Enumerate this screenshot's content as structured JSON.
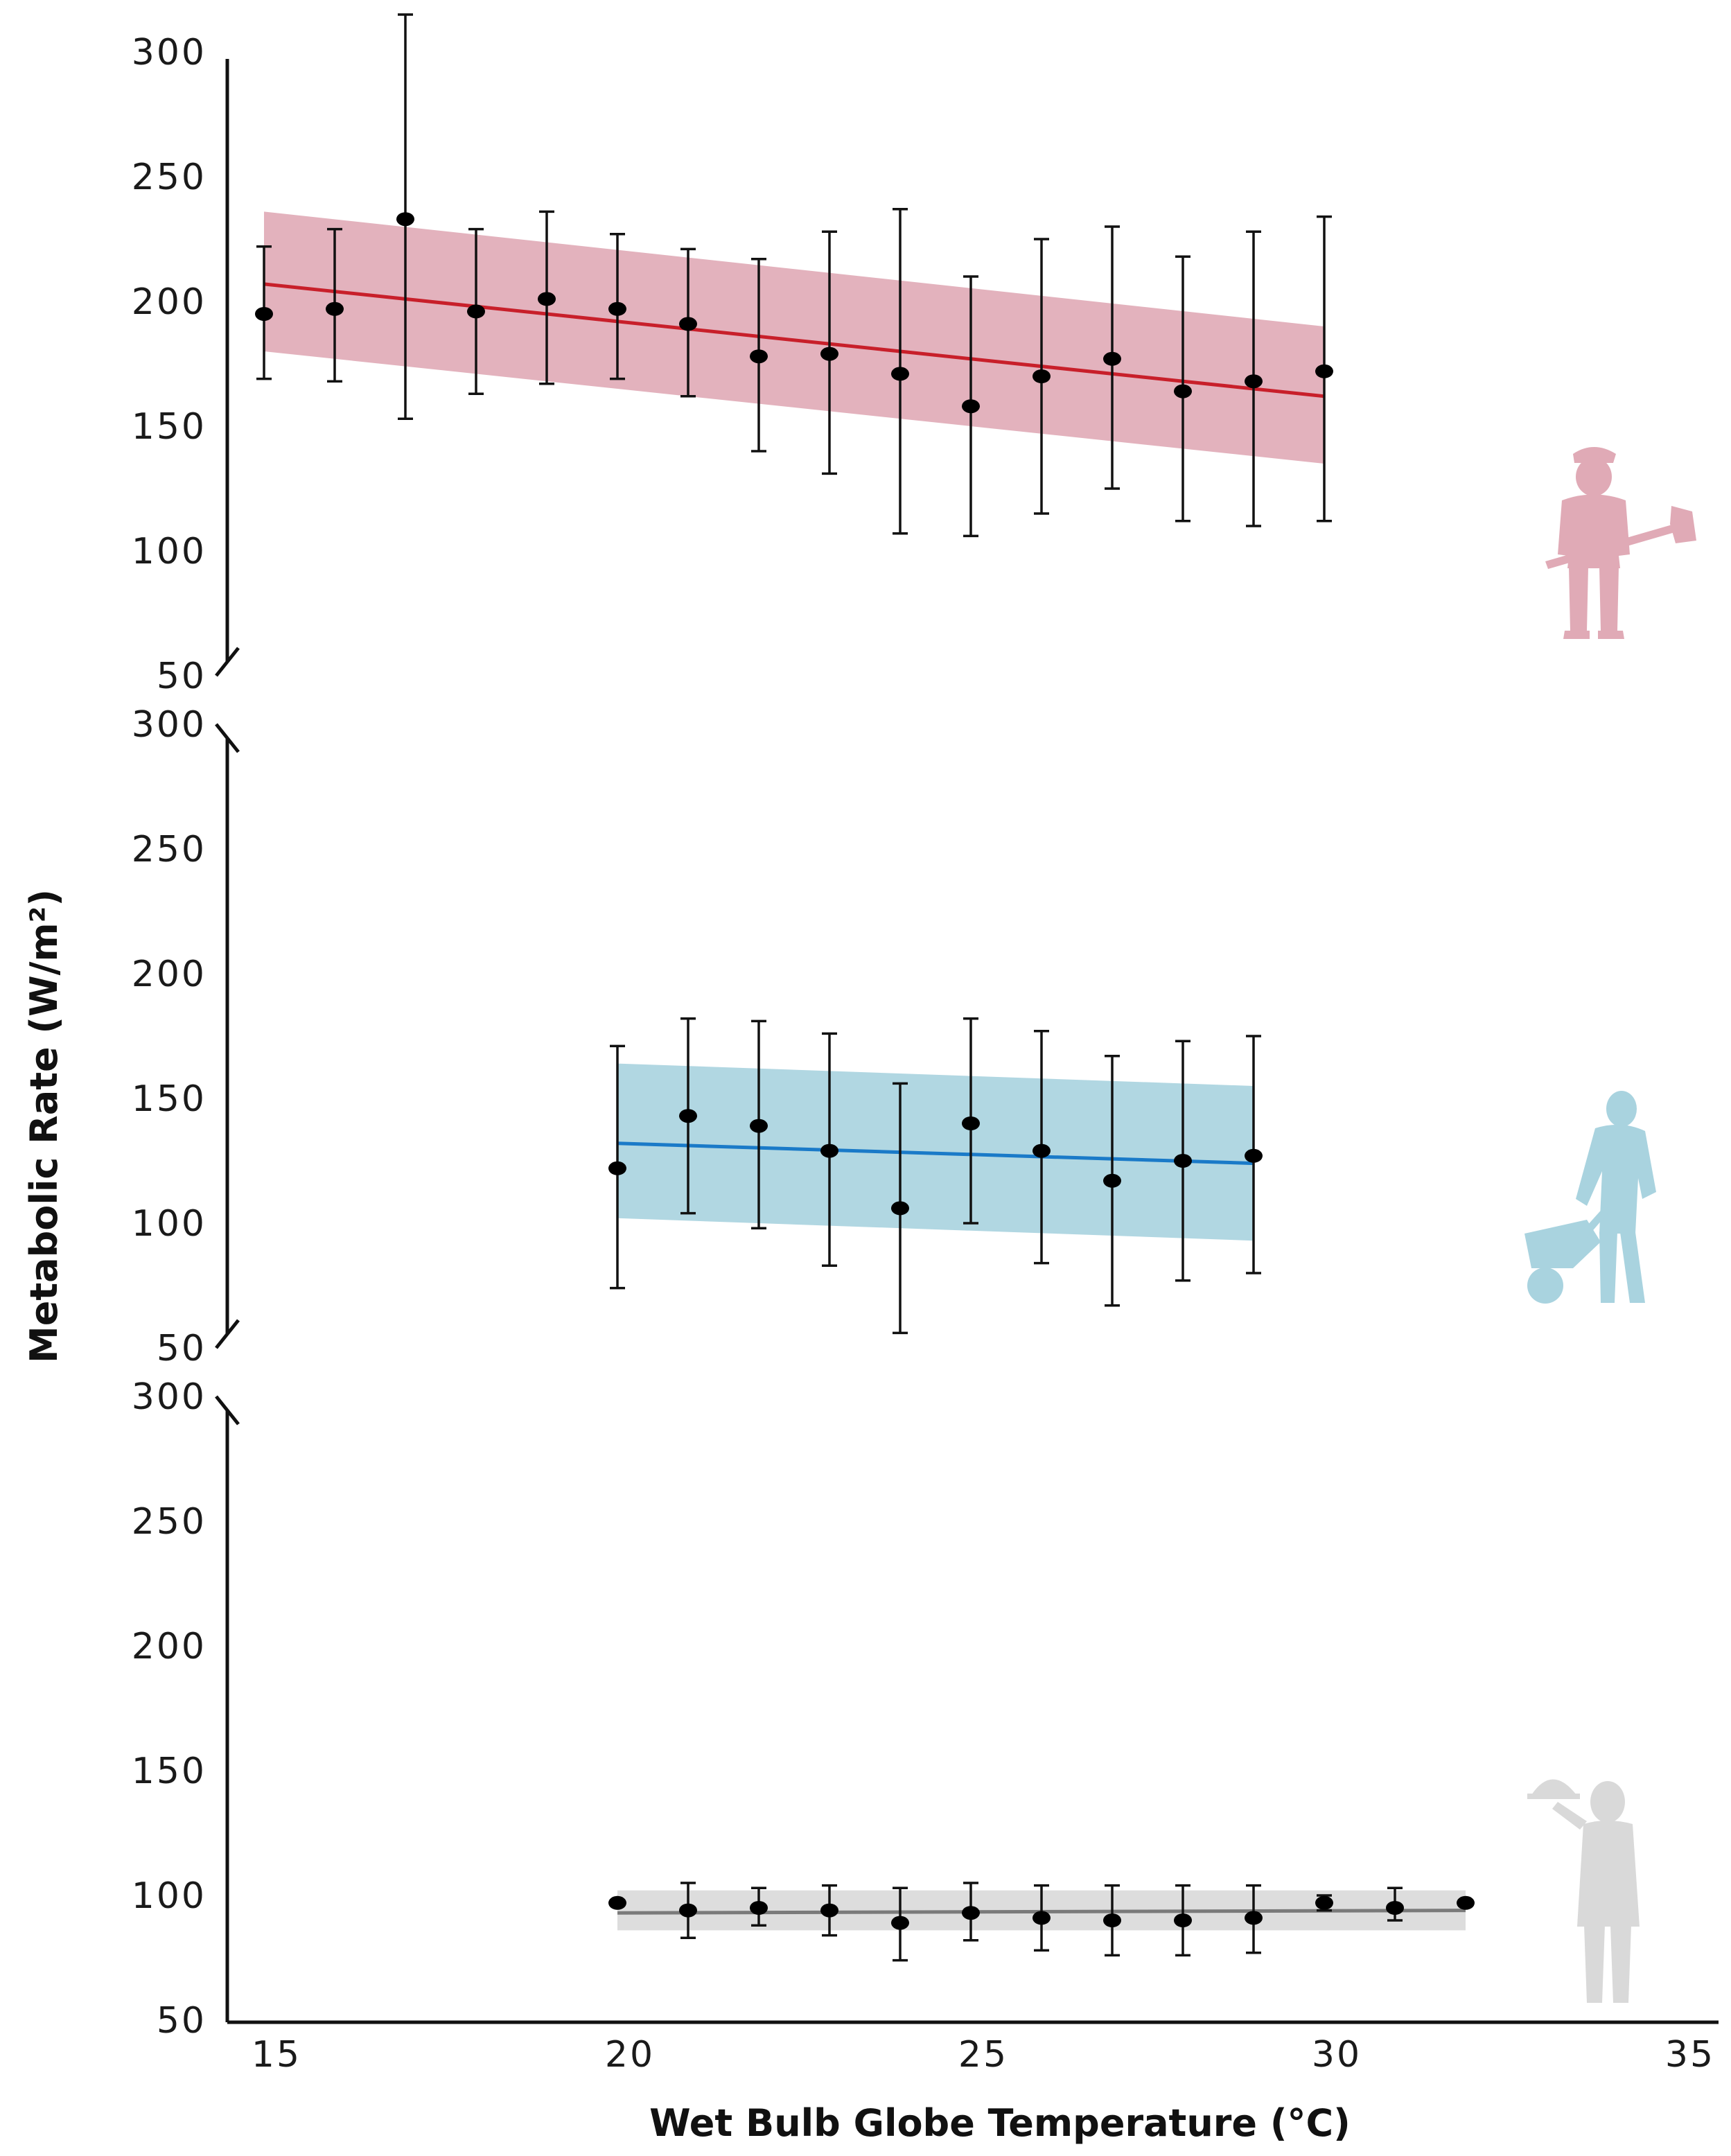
{
  "chart_data": {
    "type": "scatter",
    "xlabel": "Wet Bulb Globe Temperature (°C)",
    "ylabel": "Metabolic Rate (W/m²)",
    "xlim": [
      15,
      35
    ],
    "xticks": [
      "15",
      "20",
      "25",
      "30",
      "35"
    ],
    "ylim": [
      50,
      300
    ],
    "yticks": [
      "50",
      "100",
      "150",
      "200",
      "250",
      "300"
    ],
    "panels": [
      {
        "name": "",
        "icon": "worker-with-shovel-icon",
        "color": "#c81f2a",
        "band_color": "#e0aab6",
        "points": [
          {
            "x": 15,
            "y": 195,
            "lo": 169,
            "hi": 222
          },
          {
            "x": 16,
            "y": 197,
            "lo": 168,
            "hi": 229
          },
          {
            "x": 17,
            "y": 233,
            "lo": 153,
            "hi": 315
          },
          {
            "x": 18,
            "y": 196,
            "lo": 163,
            "hi": 229
          },
          {
            "x": 19,
            "y": 201,
            "lo": 167,
            "hi": 236
          },
          {
            "x": 20,
            "y": 197,
            "lo": 169,
            "hi": 227
          },
          {
            "x": 21,
            "y": 191,
            "lo": 162,
            "hi": 221
          },
          {
            "x": 22,
            "y": 178,
            "lo": 140,
            "hi": 217
          },
          {
            "x": 23,
            "y": 179,
            "lo": 131,
            "hi": 228
          },
          {
            "x": 24,
            "y": 171,
            "lo": 107,
            "hi": 237
          },
          {
            "x": 25,
            "y": 158,
            "lo": 106,
            "hi": 210
          },
          {
            "x": 26,
            "y": 170,
            "lo": 115,
            "hi": 225
          },
          {
            "x": 27,
            "y": 177,
            "lo": 125,
            "hi": 230
          },
          {
            "x": 28,
            "y": 164,
            "lo": 112,
            "hi": 218
          },
          {
            "x": 29,
            "y": 168,
            "lo": 110,
            "hi": 228
          },
          {
            "x": 30,
            "y": 172,
            "lo": 112,
            "hi": 234
          }
        ],
        "fit": {
          "x": [
            15,
            30
          ],
          "y": [
            207,
            162
          ]
        },
        "band": {
          "x": [
            15,
            30
          ],
          "upper": [
            236,
            190
          ],
          "lower": [
            180,
            135
          ]
        }
      },
      {
        "name": "",
        "icon": "worker-with-wheelbarrow-icon",
        "color": "#1a7ac8",
        "band_color": "#a9d3df",
        "points": [
          {
            "x": 20,
            "y": 122,
            "lo": 74,
            "hi": 171
          },
          {
            "x": 21,
            "y": 143,
            "lo": 104,
            "hi": 182
          },
          {
            "x": 22,
            "y": 139,
            "lo": 98,
            "hi": 181
          },
          {
            "x": 23,
            "y": 129,
            "lo": 83,
            "hi": 176
          },
          {
            "x": 24,
            "y": 106,
            "lo": 56,
            "hi": 156
          },
          {
            "x": 25,
            "y": 140,
            "lo": 100,
            "hi": 182
          },
          {
            "x": 26,
            "y": 129,
            "lo": 84,
            "hi": 177
          },
          {
            "x": 27,
            "y": 117,
            "lo": 67,
            "hi": 167
          },
          {
            "x": 28,
            "y": 125,
            "lo": 77,
            "hi": 173
          },
          {
            "x": 29,
            "y": 127,
            "lo": 80,
            "hi": 175
          }
        ],
        "fit": {
          "x": [
            20,
            29
          ],
          "y": [
            132,
            124
          ]
        },
        "band": {
          "x": [
            20,
            29
          ],
          "upper": [
            164,
            155
          ],
          "lower": [
            102,
            93
          ]
        }
      },
      {
        "name": "",
        "icon": "waiter-with-tray-icon",
        "color": "#7a7a7a",
        "band_color": "#d9d9d9",
        "points": [
          {
            "x": 20,
            "y": 97,
            "lo": 97,
            "hi": 97
          },
          {
            "x": 21,
            "y": 94,
            "lo": 83,
            "hi": 105
          },
          {
            "x": 22,
            "y": 95,
            "lo": 88,
            "hi": 103
          },
          {
            "x": 23,
            "y": 94,
            "lo": 84,
            "hi": 104
          },
          {
            "x": 24,
            "y": 89,
            "lo": 74,
            "hi": 103
          },
          {
            "x": 25,
            "y": 93,
            "lo": 82,
            "hi": 105
          },
          {
            "x": 26,
            "y": 91,
            "lo": 78,
            "hi": 104
          },
          {
            "x": 27,
            "y": 90,
            "lo": 76,
            "hi": 104
          },
          {
            "x": 28,
            "y": 90,
            "lo": 76,
            "hi": 104
          },
          {
            "x": 29,
            "y": 91,
            "lo": 77,
            "hi": 104
          },
          {
            "x": 30,
            "y": 97,
            "lo": 94,
            "hi": 100
          },
          {
            "x": 31,
            "y": 95,
            "lo": 90,
            "hi": 103
          },
          {
            "x": 32,
            "y": 97,
            "lo": 97,
            "hi": 97
          }
        ],
        "fit": {
          "x": [
            20,
            32
          ],
          "y": [
            93,
            94
          ]
        },
        "band": {
          "x": [
            20,
            32
          ],
          "upper": [
            102,
            102
          ],
          "lower": [
            86,
            86
          ]
        }
      }
    ]
  }
}
